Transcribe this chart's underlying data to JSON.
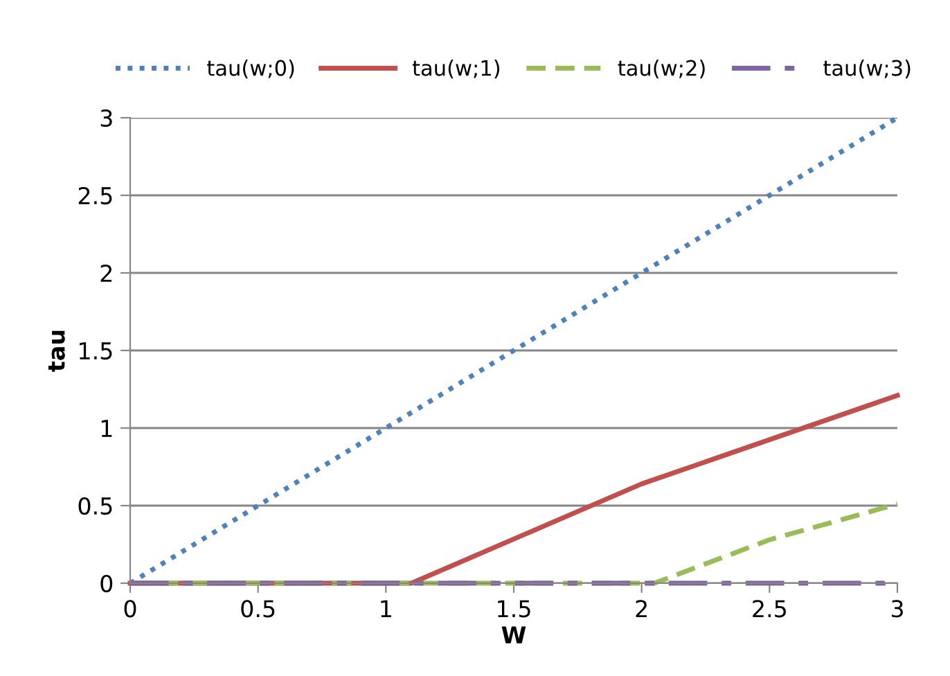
{
  "chart_data": {
    "type": "line",
    "xlabel": "W",
    "ylabel": "tau",
    "xlim": [
      0,
      3
    ],
    "ylim": [
      0,
      3
    ],
    "xticks": [
      0,
      0.5,
      1,
      1.5,
      2,
      2.5,
      3
    ],
    "yticks": [
      0,
      0.5,
      1,
      1.5,
      2,
      2.5,
      3
    ],
    "grid": "y",
    "legend": "top",
    "marker": "none",
    "series": [
      {
        "name": "tau(w;0)",
        "color": "#4f81bd",
        "line_style": "dotted",
        "x": [
          0,
          1,
          2,
          3
        ],
        "values": [
          0,
          1,
          2,
          3
        ]
      },
      {
        "name": "tau(w;1)",
        "color": "#c0504d",
        "line_style": "solid",
        "x": [
          0,
          1.1,
          2,
          3
        ],
        "values": [
          0,
          0,
          0.64,
          1.21
        ]
      },
      {
        "name": "tau(w;2)",
        "color": "#9bbb59",
        "line_style": "dashed",
        "x": [
          0,
          2.05,
          2.5,
          3
        ],
        "values": [
          0,
          0,
          0.28,
          0.51
        ]
      },
      {
        "name": "tau(w;3)",
        "color": "#8064a2",
        "line_style": "longdash",
        "x": [
          0,
          2.95,
          3
        ],
        "values": [
          0,
          0,
          0.02
        ]
      }
    ]
  }
}
